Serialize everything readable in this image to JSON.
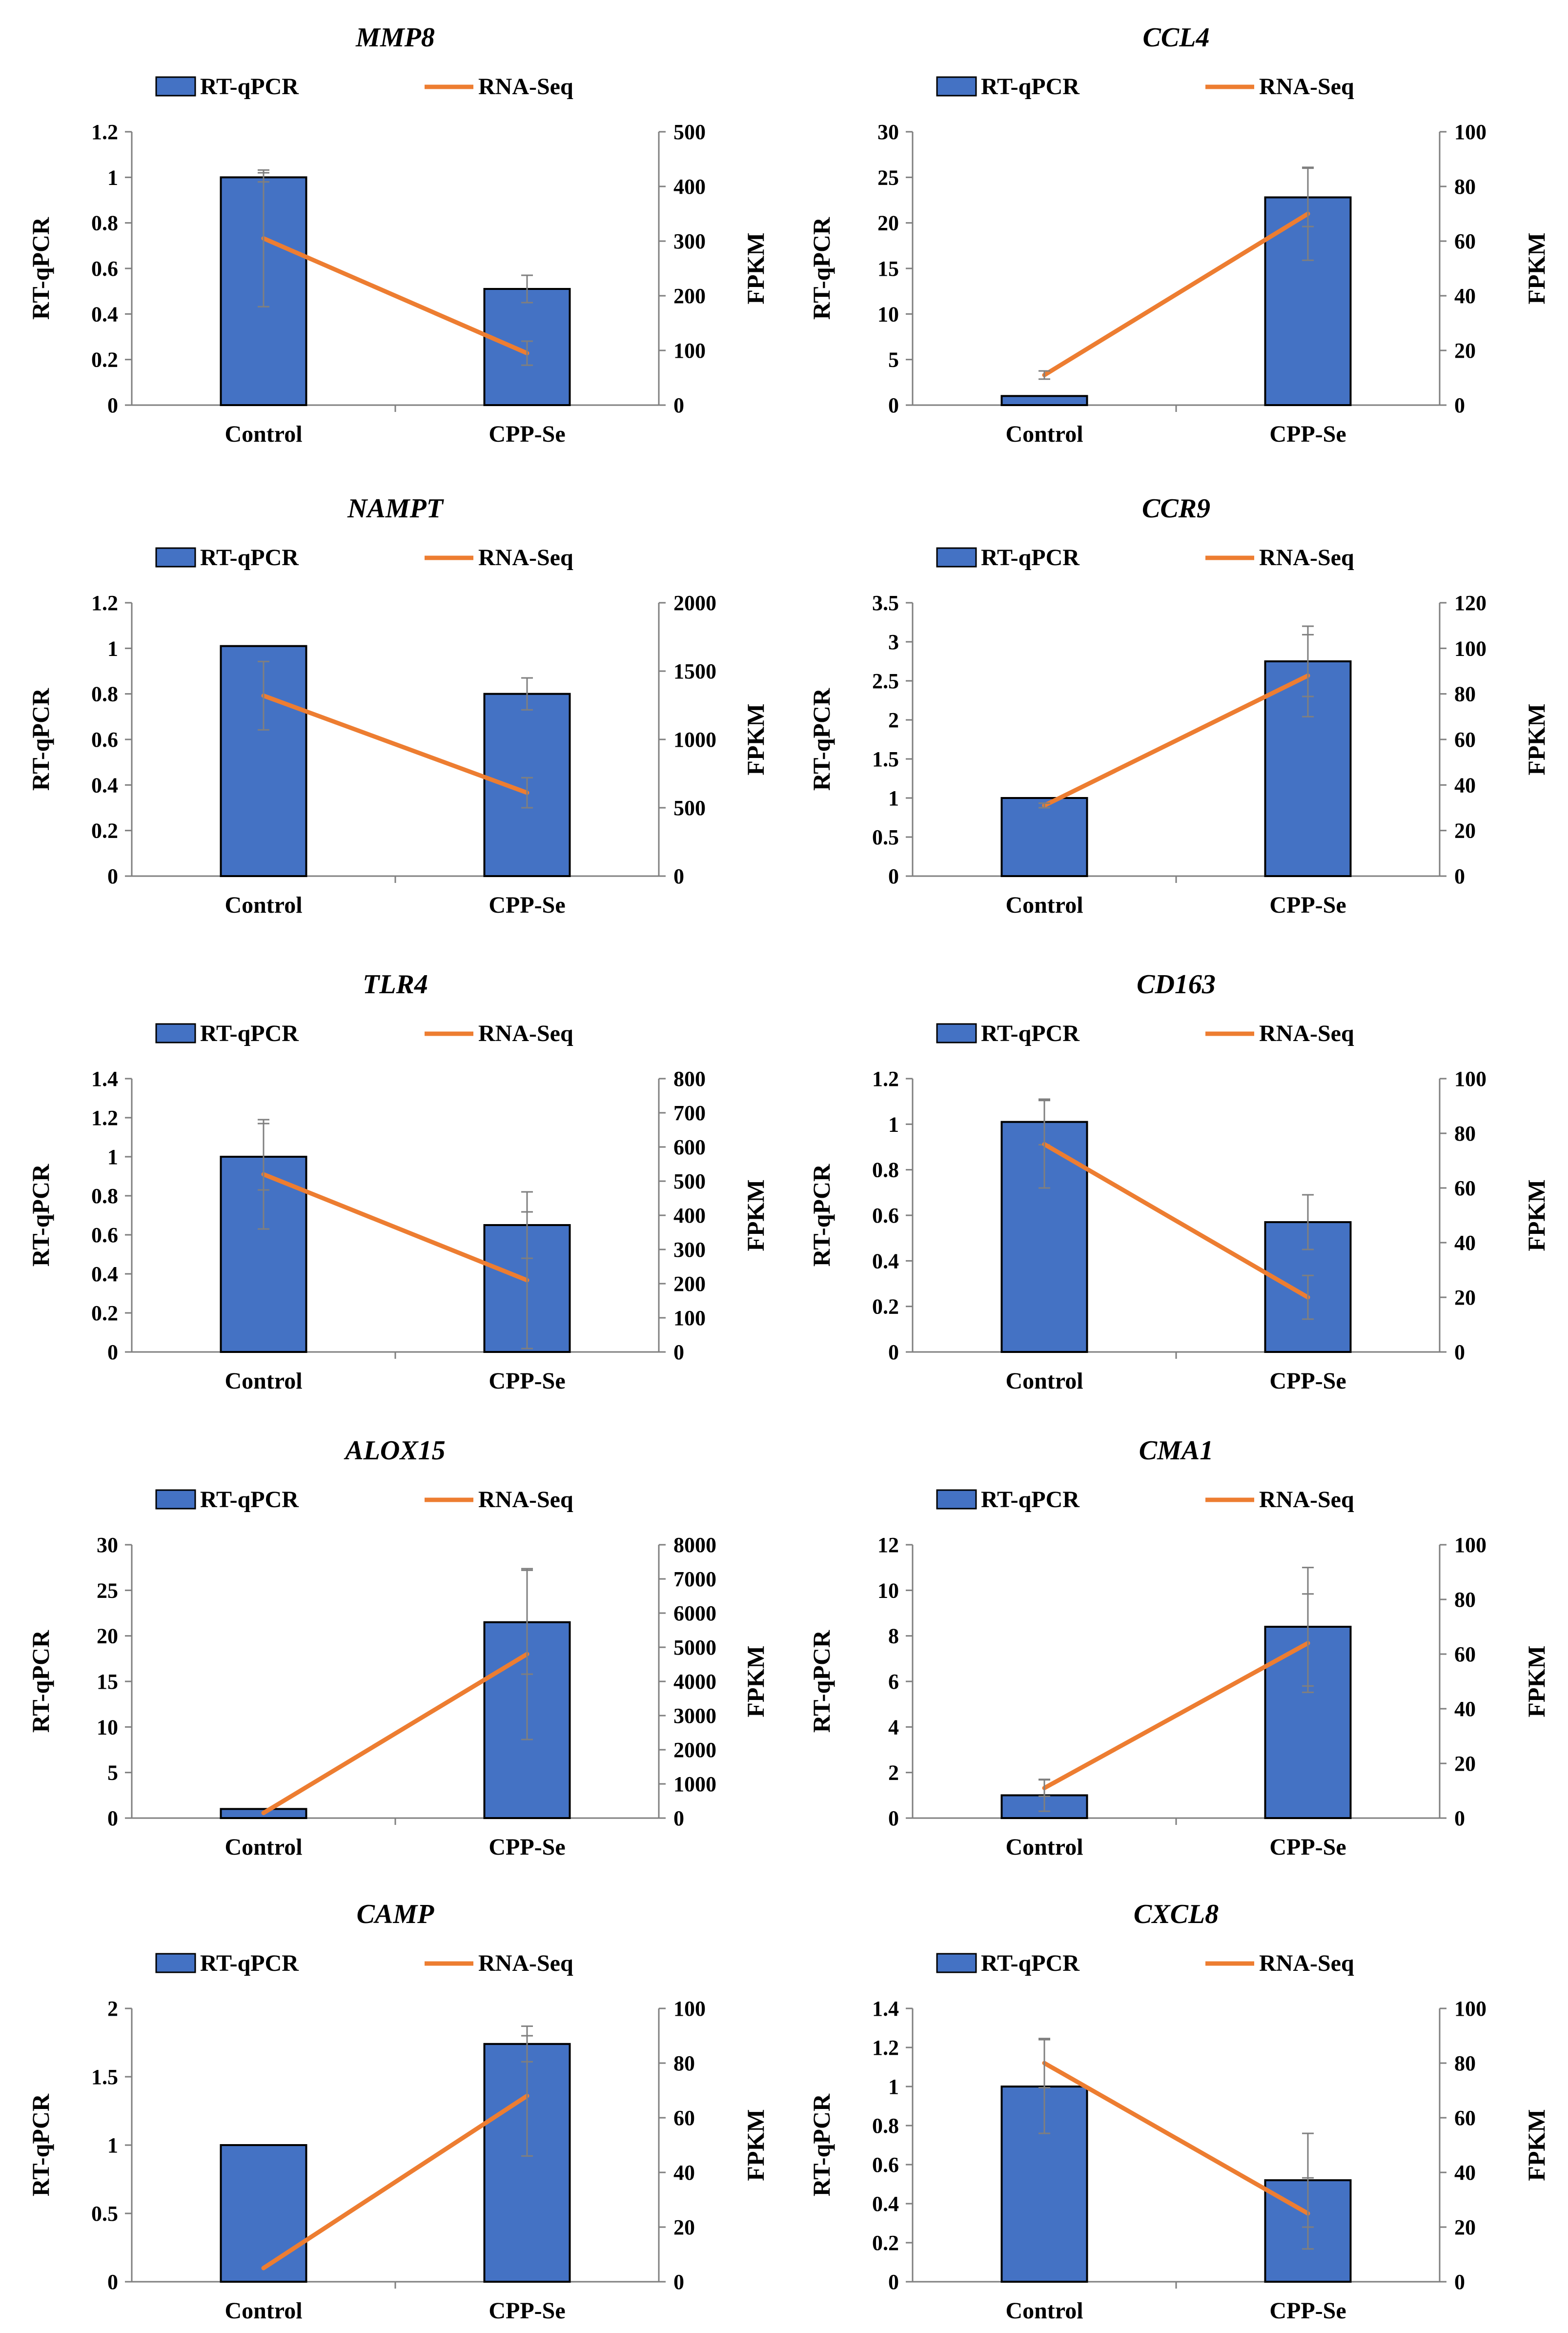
{
  "legend": {
    "bar_label": "RT-qPCR",
    "line_label": "RNA-Seq"
  },
  "axis_labels": {
    "left": "RT-qPCR",
    "right": "FPKM"
  },
  "colors": {
    "bar": "#4472c4",
    "bar_border": "#000000",
    "line": "#ed7d31",
    "error_bar": "#7f7f7f",
    "axis": "#7f7f7f"
  },
  "chart_data": [
    {
      "type": "bar+line",
      "title": "MMP8",
      "categories": [
        "Control",
        "CPP-Se"
      ],
      "series": [
        {
          "name": "RT-qPCR",
          "axis": "left",
          "type": "bar",
          "values": [
            1.0,
            0.51
          ],
          "error": [
            0.02,
            0.06
          ]
        },
        {
          "name": "RNA-Seq",
          "axis": "right",
          "type": "line",
          "values": [
            305,
            95
          ],
          "error": [
            125,
            22
          ]
        }
      ],
      "left_axis": {
        "min": 0,
        "max": 1.2,
        "ticks": [
          "0",
          "0.2",
          "0.4",
          "0.6",
          "0.8",
          "1",
          "1.2"
        ]
      },
      "right_axis": {
        "min": 0,
        "max": 500,
        "ticks": [
          "0",
          "100",
          "200",
          "300",
          "400",
          "500"
        ]
      }
    },
    {
      "type": "bar+line",
      "title": "CCL4",
      "categories": [
        "Control",
        "CPP-Se"
      ],
      "series": [
        {
          "name": "RT-qPCR",
          "axis": "left",
          "type": "bar",
          "values": [
            1.0,
            22.8
          ],
          "error": [
            0,
            3.2
          ]
        },
        {
          "name": "RNA-Seq",
          "axis": "right",
          "type": "line",
          "values": [
            11,
            70
          ],
          "error": [
            1.5,
            17
          ]
        }
      ],
      "left_axis": {
        "min": 0,
        "max": 30,
        "ticks": [
          "0",
          "5",
          "10",
          "15",
          "20",
          "25",
          "30"
        ]
      },
      "right_axis": {
        "min": 0,
        "max": 100,
        "ticks": [
          "0",
          "20",
          "40",
          "60",
          "80",
          "100"
        ]
      }
    },
    {
      "type": "bar+line",
      "title": "NAMPT",
      "categories": [
        "Control",
        "CPP-Se"
      ],
      "series": [
        {
          "name": "RT-qPCR",
          "axis": "left",
          "type": "bar",
          "values": [
            1.01,
            0.8
          ],
          "error": [
            0,
            0.07
          ]
        },
        {
          "name": "RNA-Seq",
          "axis": "right",
          "type": "line",
          "values": [
            1320,
            610
          ],
          "error": [
            250,
            110
          ]
        }
      ],
      "left_axis": {
        "min": 0,
        "max": 1.2,
        "ticks": [
          "0",
          "0.2",
          "0.4",
          "0.6",
          "0.8",
          "1",
          "1.2"
        ]
      },
      "right_axis": {
        "min": 0,
        "max": 2000,
        "ticks": [
          "0",
          "500",
          "1000",
          "1500",
          "2000"
        ]
      }
    },
    {
      "type": "bar+line",
      "title": "CCR9",
      "categories": [
        "Control",
        "CPP-Se"
      ],
      "series": [
        {
          "name": "RT-qPCR",
          "axis": "left",
          "type": "bar",
          "values": [
            1.0,
            2.75
          ],
          "error": [
            0,
            0.45
          ]
        },
        {
          "name": "RNA-Seq",
          "axis": "right",
          "type": "line",
          "values": [
            31,
            88
          ],
          "error": [
            1,
            18
          ]
        }
      ],
      "left_axis": {
        "min": 0,
        "max": 3.5,
        "ticks": [
          "0",
          "0.5",
          "1",
          "1.5",
          "2",
          "2.5",
          "3",
          "3.5"
        ]
      },
      "right_axis": {
        "min": 0,
        "max": 120,
        "ticks": [
          "0",
          "20",
          "40",
          "60",
          "80",
          "100",
          "120"
        ]
      }
    },
    {
      "type": "bar+line",
      "title": "TLR4",
      "categories": [
        "Control",
        "CPP-Se"
      ],
      "series": [
        {
          "name": "RT-qPCR",
          "axis": "left",
          "type": "bar",
          "values": [
            1.0,
            0.65
          ],
          "error": [
            0.17,
            0.17
          ]
        },
        {
          "name": "RNA-Seq",
          "axis": "right",
          "type": "line",
          "values": [
            520,
            210
          ],
          "error": [
            160,
            200
          ]
        }
      ],
      "left_axis": {
        "min": 0,
        "max": 1.4,
        "ticks": [
          "0",
          "0.2",
          "0.4",
          "0.6",
          "0.8",
          "1",
          "1.2",
          "1.4"
        ]
      },
      "right_axis": {
        "min": 0,
        "max": 800,
        "ticks": [
          "0",
          "100",
          "200",
          "300",
          "400",
          "500",
          "600",
          "700",
          "800"
        ]
      }
    },
    {
      "type": "bar+line",
      "title": "CD163",
      "categories": [
        "Control",
        "CPP-Se"
      ],
      "series": [
        {
          "name": "RT-qPCR",
          "axis": "left",
          "type": "bar",
          "values": [
            1.01,
            0.57
          ],
          "error": [
            0.1,
            0.12
          ]
        },
        {
          "name": "RNA-Seq",
          "axis": "right",
          "type": "line",
          "values": [
            76,
            20
          ],
          "error": [
            16,
            8
          ]
        }
      ],
      "left_axis": {
        "min": 0,
        "max": 1.2,
        "ticks": [
          "0",
          "0.2",
          "0.4",
          "0.6",
          "0.8",
          "1",
          "1.2"
        ]
      },
      "right_axis": {
        "min": 0,
        "max": 100,
        "ticks": [
          "0",
          "20",
          "40",
          "60",
          "80",
          "100"
        ]
      }
    },
    {
      "type": "bar+line",
      "title": "ALOX15",
      "categories": [
        "Control",
        "CPP-Se"
      ],
      "series": [
        {
          "name": "RT-qPCR",
          "axis": "left",
          "type": "bar",
          "values": [
            1.0,
            21.5
          ],
          "error": [
            0,
            5.7
          ]
        },
        {
          "name": "RNA-Seq",
          "axis": "right",
          "type": "line",
          "values": [
            150,
            4800
          ],
          "error": [
            0,
            2500
          ]
        }
      ],
      "left_axis": {
        "min": 0,
        "max": 30,
        "ticks": [
          "0",
          "5",
          "10",
          "15",
          "20",
          "25",
          "30"
        ]
      },
      "right_axis": {
        "min": 0,
        "max": 8000,
        "ticks": [
          "0",
          "1000",
          "2000",
          "3000",
          "4000",
          "5000",
          "6000",
          "7000",
          "8000"
        ]
      }
    },
    {
      "type": "bar+line",
      "title": "CMA1",
      "categories": [
        "Control",
        "CPP-Se"
      ],
      "series": [
        {
          "name": "RT-qPCR",
          "axis": "left",
          "type": "bar",
          "values": [
            1.0,
            8.4
          ],
          "error": [
            0.7,
            2.6
          ]
        },
        {
          "name": "RNA-Seq",
          "axis": "right",
          "type": "line",
          "values": [
            11,
            64
          ],
          "error": [
            3,
            18
          ]
        }
      ],
      "left_axis": {
        "min": 0,
        "max": 12,
        "ticks": [
          "0",
          "2",
          "4",
          "6",
          "8",
          "10",
          "12"
        ]
      },
      "right_axis": {
        "min": 0,
        "max": 100,
        "ticks": [
          "0",
          "20",
          "40",
          "60",
          "80",
          "100"
        ]
      }
    },
    {
      "type": "bar+line",
      "title": "CAMP",
      "categories": [
        "Control",
        "CPP-Se"
      ],
      "series": [
        {
          "name": "RT-qPCR",
          "axis": "left",
          "type": "bar",
          "values": [
            1.0,
            1.74
          ],
          "error": [
            0,
            0.13
          ]
        },
        {
          "name": "RNA-Seq",
          "axis": "right",
          "type": "line",
          "values": [
            5,
            68
          ],
          "error": [
            0,
            22
          ]
        }
      ],
      "left_axis": {
        "min": 0,
        "max": 2,
        "ticks": [
          "0",
          "0.5",
          "1",
          "1.5",
          "2"
        ]
      },
      "right_axis": {
        "min": 0,
        "max": 100,
        "ticks": [
          "0",
          "20",
          "40",
          "60",
          "80",
          "100"
        ]
      }
    },
    {
      "type": "bar+line",
      "title": "CXCL8",
      "categories": [
        "Control",
        "CPP-Se"
      ],
      "series": [
        {
          "name": "RT-qPCR",
          "axis": "left",
          "type": "bar",
          "values": [
            1.0,
            0.52
          ],
          "error": [
            0.24,
            0.24
          ]
        },
        {
          "name": "RNA-Seq",
          "axis": "right",
          "type": "line",
          "values": [
            80,
            25
          ],
          "error": [
            9,
            13
          ]
        }
      ],
      "left_axis": {
        "min": 0,
        "max": 1.4,
        "ticks": [
          "0",
          "0.2",
          "0.4",
          "0.6",
          "0.8",
          "1",
          "1.2",
          "1.4"
        ]
      },
      "right_axis": {
        "min": 0,
        "max": 100,
        "ticks": [
          "0",
          "20",
          "40",
          "60",
          "80",
          "100"
        ]
      }
    }
  ]
}
